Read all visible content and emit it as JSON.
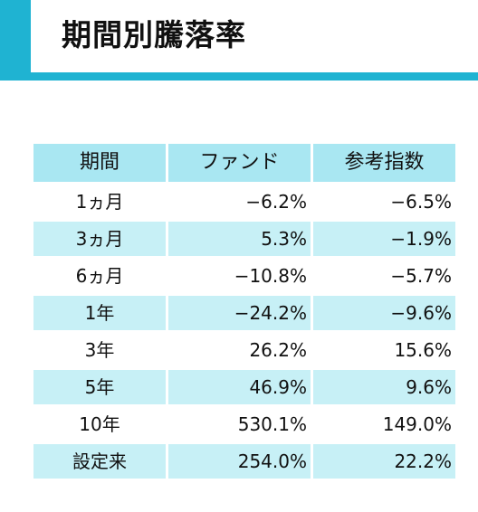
{
  "title": "期間別騰落率",
  "colors": {
    "accent": "#1fb3d2",
    "header_bg": "#a9e7f2",
    "row_shade": "#c7f0f6"
  },
  "table": {
    "headers": [
      "期間",
      "ファンド",
      "参考指数"
    ],
    "rows": [
      {
        "period": "1ヵ月",
        "fund": "−6.2%",
        "index": "−6.5%"
      },
      {
        "period": "3ヵ月",
        "fund": "5.3%",
        "index": "−1.9%"
      },
      {
        "period": "6ヵ月",
        "fund": "−10.8%",
        "index": "−5.7%"
      },
      {
        "period": "1年",
        "fund": "−24.2%",
        "index": "−9.6%"
      },
      {
        "period": "3年",
        "fund": "26.2%",
        "index": "15.6%"
      },
      {
        "period": "5年",
        "fund": "46.9%",
        "index": "9.6%"
      },
      {
        "period": "10年",
        "fund": "530.1%",
        "index": "149.0%"
      },
      {
        "period": "設定来",
        "fund": "254.0%",
        "index": "22.2%"
      }
    ]
  }
}
